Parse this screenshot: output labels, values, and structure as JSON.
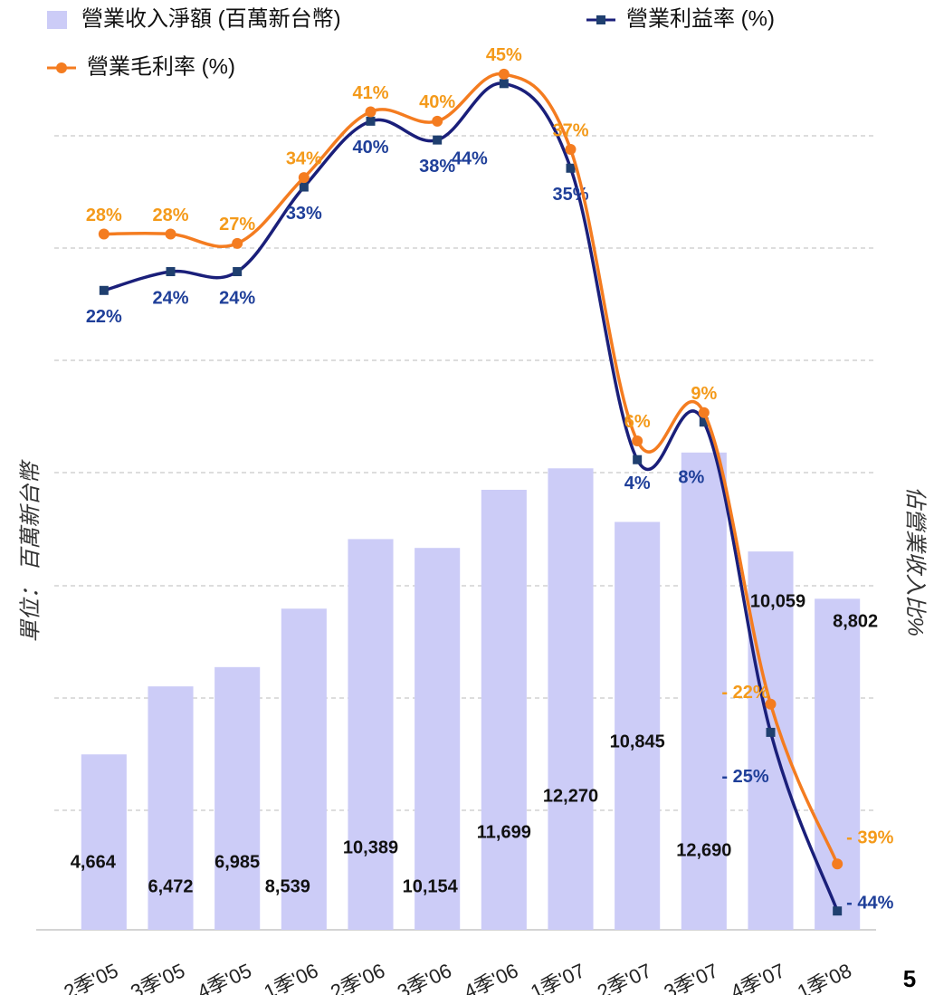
{
  "chart_data": {
    "type": "bar",
    "categories": [
      "2季'05",
      "3季'05",
      "4季'05",
      "1季'06",
      "2季'06",
      "3季'06",
      "4季'06",
      "1季'07",
      "2季'07",
      "3季'07",
      "4季'07",
      "1季'08"
    ],
    "ylabel": "單位： 百萬新台幣",
    "y2label": "佔營業收入比%",
    "ylim": [
      0,
      24000
    ],
    "y2lim": [
      -46,
      50
    ],
    "series": [
      {
        "name": "營業收入淨額 (百萬新台幣)",
        "type": "bar",
        "color": "#ccccf7",
        "values": [
          4664,
          6472,
          6985,
          8539,
          10389,
          10154,
          11699,
          12270,
          10845,
          12690,
          10059,
          8802
        ],
        "value_labels": [
          "4,664",
          "6,472",
          "6,985",
          "8,539",
          "10,389",
          "10,154",
          "11,699",
          "12,270",
          "10,845",
          "12,690",
          "10,059",
          "8,802"
        ]
      },
      {
        "name": "營業利益率 (%)",
        "type": "line",
        "axis": "y2",
        "color": "#1a1f7a",
        "label_color": "#1f3f99",
        "values": [
          22,
          24,
          24,
          33,
          40,
          38,
          44,
          35,
          4,
          8,
          -25,
          -44
        ],
        "value_labels": [
          "22%",
          "24%",
          "24%",
          "33%",
          "40%",
          "38%",
          "44%",
          "35%",
          "4%",
          "8%",
          "- 25%",
          "- 44%"
        ]
      },
      {
        "name": "營業毛利率 (%)",
        "type": "line",
        "axis": "y2",
        "color": "#f47c20",
        "label_color": "#f49a1a",
        "values": [
          28,
          28,
          27,
          34,
          41,
          40,
          45,
          37,
          6,
          9,
          -22,
          -39
        ],
        "value_labels": [
          "28%",
          "28%",
          "27%",
          "34%",
          "41%",
          "40%",
          "45%",
          "37%",
          "6%",
          "9%",
          "- 22%",
          "- 39%"
        ]
      }
    ]
  },
  "page_number": "5"
}
